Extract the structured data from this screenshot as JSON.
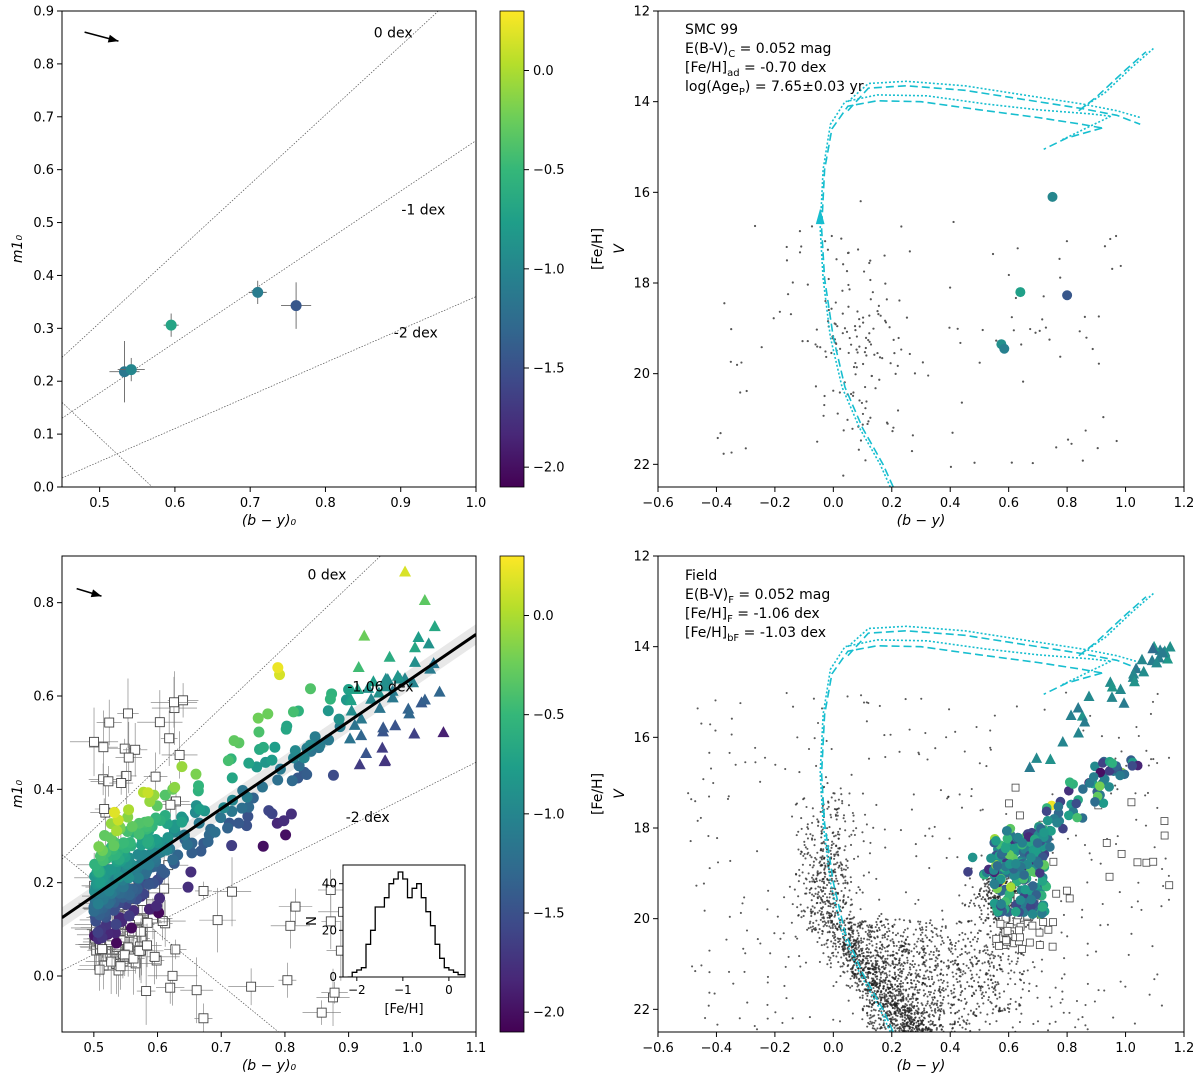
{
  "colormap": {
    "name": "viridis",
    "stops": [
      "#440154",
      "#482878",
      "#3e4989",
      "#31688e",
      "#26828e",
      "#1f9e89",
      "#35b779",
      "#6ece58",
      "#b5de2b",
      "#fde725"
    ],
    "range": [
      -2.1,
      0.3
    ],
    "ticks": [
      0.0,
      -0.5,
      -1.0,
      -1.5,
      -2.0
    ],
    "tick_labels": [
      "0.0",
      "−0.5",
      "−1.0",
      "−1.5",
      "−2.0"
    ],
    "label": "[Fe/H]"
  },
  "iso_color": "#17becf",
  "chart_data": [
    {
      "id": "p1",
      "type": "scatter",
      "xlabel": "(b − y)₀",
      "ylabel": "m1₀",
      "xlim": [
        0.45,
        1.0
      ],
      "ylim": [
        0.0,
        0.9
      ],
      "xticks": [
        0.5,
        0.6,
        0.7,
        0.8,
        0.9,
        1.0
      ],
      "xtick_labels": [
        "0.5",
        "0.6",
        "0.7",
        "0.8",
        "0.9",
        "1.0"
      ],
      "yticks": [
        0.0,
        0.1,
        0.2,
        0.3,
        0.4,
        0.5,
        0.6,
        0.7,
        0.8,
        0.9
      ],
      "ytick_labels": [
        "0.0",
        "0.1",
        "0.2",
        "0.3",
        "0.4",
        "0.5",
        "0.6",
        "0.7",
        "0.8",
        "0.9"
      ],
      "lines": [
        {
          "label": "0 dex",
          "x0": 0.45,
          "y0": 0.245,
          "x1": 0.95,
          "y1": 0.9,
          "lx": 0.89,
          "ly": 0.85
        },
        {
          "label": "-1 dex",
          "x0": 0.45,
          "y0": 0.13,
          "x1": 1.0,
          "y1": 0.655,
          "lx": 0.93,
          "ly": 0.515
        },
        {
          "label": "-2 dex",
          "x0": 0.45,
          "y0": 0.017,
          "x1": 1.0,
          "y1": 0.36,
          "lx": 0.92,
          "ly": 0.283
        },
        {
          "label": "",
          "x0": 0.45,
          "y0": 0.16,
          "x1": 0.57,
          "y1": 0.0
        }
      ],
      "arrow": {
        "x0": 0.48,
        "y0": 0.86,
        "x1": 0.525,
        "y1": 0.843
      },
      "points": [
        {
          "x": 0.533,
          "y": 0.218,
          "ex": 0.02,
          "ey": 0.058,
          "feh": -1.15
        },
        {
          "x": 0.542,
          "y": 0.222,
          "ex": 0.018,
          "ey": 0.022,
          "feh": -1.0
        },
        {
          "x": 0.595,
          "y": 0.306,
          "ex": 0.01,
          "ey": 0.022,
          "feh": -0.7
        },
        {
          "x": 0.71,
          "y": 0.368,
          "ex": 0.012,
          "ey": 0.022,
          "feh": -1.1
        },
        {
          "x": 0.761,
          "y": 0.343,
          "ex": 0.02,
          "ey": 0.044,
          "feh": -1.45
        }
      ],
      "colorbar": true
    },
    {
      "id": "p2",
      "type": "scatter",
      "xlabel": "(b − y)",
      "ylabel": "V",
      "xlim": [
        -0.6,
        1.2
      ],
      "ylim": [
        12,
        22.5
      ],
      "y_inverted": true,
      "xticks": [
        -0.6,
        -0.4,
        -0.2,
        0.0,
        0.2,
        0.4,
        0.6,
        0.8,
        1.0,
        1.2
      ],
      "xtick_labels": [
        "−0.6",
        "−0.4",
        "−0.2",
        "0.0",
        "0.2",
        "0.4",
        "0.6",
        "0.8",
        "1.0",
        "1.2"
      ],
      "yticks": [
        12,
        14,
        16,
        18,
        20,
        22
      ],
      "ytick_labels": [
        "12",
        "14",
        "16",
        "18",
        "20",
        "22"
      ],
      "annotations": [
        "SMC 99",
        "E(B-V)_C = 0.052 mag",
        "[Fe/H]_ad = -0.70 dex",
        "log(Age_P) = 7.65±0.03 yr"
      ],
      "field_points": {
        "n": 230,
        "center_x": 0.1,
        "center_y": 19.5
      },
      "points": [
        {
          "x": 0.75,
          "y": 16.1,
          "feh": -1.0
        },
        {
          "x": 0.64,
          "y": 18.2,
          "feh": -0.75
        },
        {
          "x": 0.8,
          "y": 18.27,
          "feh": -1.45
        },
        {
          "x": 0.575,
          "y": 19.35,
          "feh": -0.9
        },
        {
          "x": 0.585,
          "y": 19.45,
          "feh": -1.05
        }
      ]
    },
    {
      "id": "p3",
      "type": "scatter",
      "xlabel": "(b − y)₀",
      "ylabel": "m1₀",
      "xlim": [
        0.45,
        1.1
      ],
      "ylim": [
        -0.12,
        0.9
      ],
      "xticks": [
        0.5,
        0.6,
        0.7,
        0.8,
        0.9,
        1.0,
        1.1
      ],
      "xtick_labels": [
        "0.5",
        "0.6",
        "0.7",
        "0.8",
        "0.9",
        "1.0",
        "1.1"
      ],
      "yticks": [
        0.0,
        0.2,
        0.4,
        0.6,
        0.8
      ],
      "ytick_labels": [
        "0.0",
        "0.2",
        "0.4",
        "0.6",
        "0.8"
      ],
      "lines": [
        {
          "label": "0 dex",
          "x0": 0.45,
          "y0": 0.25,
          "x1": 0.95,
          "y1": 0.9,
          "lx": 0.866,
          "ly": 0.85
        },
        {
          "label": "-2 dex",
          "x0": 0.45,
          "y0": 0.012,
          "x1": 1.1,
          "y1": 0.458,
          "lx": 0.93,
          "ly": 0.33
        },
        {
          "label": "",
          "x0": 0.45,
          "y0": 0.26,
          "x1": 0.79,
          "y1": -0.12
        }
      ],
      "fit_line": {
        "label": "-1.06 dex",
        "x0": 0.45,
        "y0": 0.125,
        "x1": 1.1,
        "y1": 0.732,
        "band": 0.022,
        "lx": 0.95,
        "ly": 0.61
      },
      "arrow": {
        "x0": 0.473,
        "y0": 0.83,
        "x1": 0.512,
        "y1": 0.814
      },
      "inset": {
        "xlabel": "[Fe/H]",
        "ylabel": "N",
        "xlim": [
          -2.3,
          0.35
        ],
        "ylim": [
          0,
          48
        ],
        "xticks": [
          -2,
          -1,
          0
        ],
        "xtick_labels": [
          "−2",
          "−1",
          "0"
        ],
        "yticks": [
          0,
          20,
          40
        ],
        "ytick_labels": [
          "0",
          "20",
          "40"
        ],
        "bin_width": 0.1,
        "bin_start": -2.2,
        "counts": [
          0,
          2,
          3,
          4,
          14,
          20,
          30,
          30,
          34,
          40,
          42,
          45,
          42,
          34,
          38,
          40,
          34,
          28,
          22,
          14,
          8,
          4,
          3,
          2,
          1,
          1
        ]
      },
      "colorbar": true
    },
    {
      "id": "p4",
      "type": "scatter",
      "xlabel": "(b − y)",
      "ylabel": "V",
      "xlim": [
        -0.6,
        1.2
      ],
      "ylim": [
        12,
        22.5
      ],
      "y_inverted": true,
      "xticks": [
        -0.6,
        -0.4,
        -0.2,
        0.0,
        0.2,
        0.4,
        0.6,
        0.8,
        1.0,
        1.2
      ],
      "xtick_labels": [
        "−0.6",
        "−0.4",
        "−0.2",
        "0.0",
        "0.2",
        "0.4",
        "0.6",
        "0.8",
        "1.0",
        "1.2"
      ],
      "yticks": [
        12,
        14,
        16,
        18,
        20,
        22
      ],
      "ytick_labels": [
        "12",
        "14",
        "16",
        "18",
        "20",
        "22"
      ],
      "annotations": [
        "Field",
        "E(B-V)_F = 0.052 mag",
        "[Fe/H]_F = -1.06 dex",
        "[Fe/H]_bF = -1.03 dex"
      ]
    }
  ]
}
